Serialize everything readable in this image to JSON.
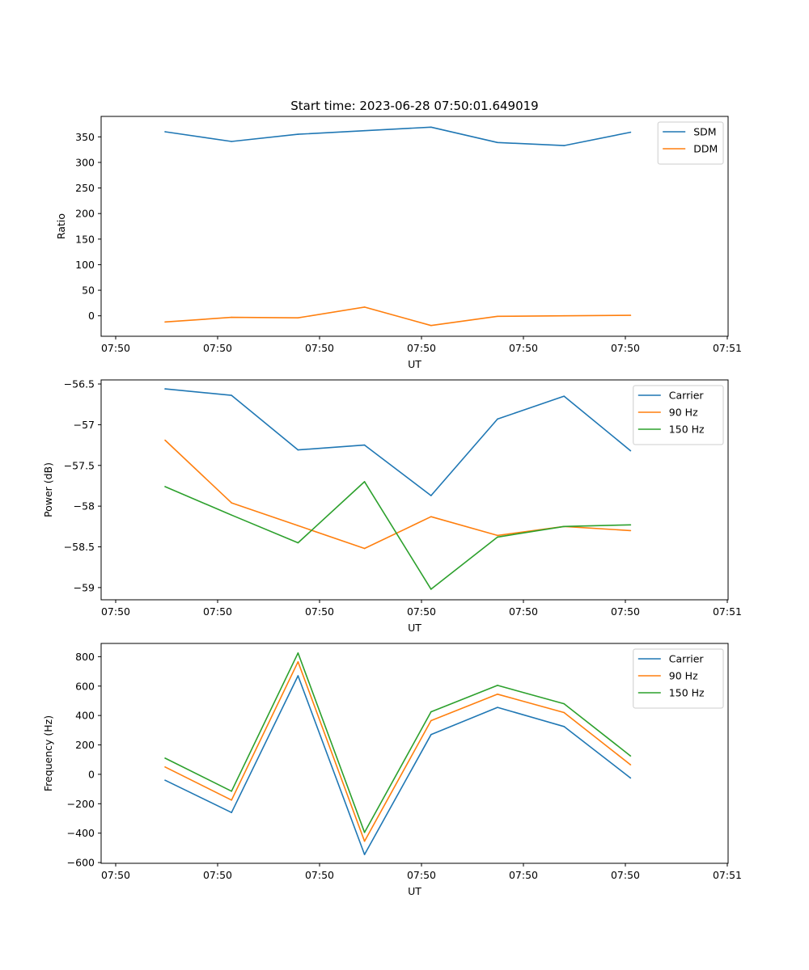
{
  "figure": {
    "title": "Start time: 2023-06-28 07:50:01.649019"
  },
  "chart_data": [
    {
      "type": "line",
      "xlabel": "UT",
      "ylabel": "Ratio",
      "x_ticks": [
        "07:50",
        "07:50",
        "07:50",
        "07:50",
        "07:50",
        "07:50",
        "07:51"
      ],
      "x_points": 8,
      "ylim": [
        -40,
        390
      ],
      "y_ticks": [
        0,
        50,
        100,
        150,
        200,
        250,
        300,
        350
      ],
      "legend": "top-right",
      "series": [
        {
          "name": "SDM",
          "color": "#1f77b4",
          "values": [
            360,
            341,
            355,
            362,
            369,
            339,
            333,
            359
          ]
        },
        {
          "name": "DDM",
          "color": "#ff7f0e",
          "values": [
            -12,
            -3,
            -4,
            17,
            -19,
            -1,
            0,
            1
          ]
        }
      ]
    },
    {
      "type": "line",
      "xlabel": "UT",
      "ylabel": "Power (dB)",
      "x_ticks": [
        "07:50",
        "07:50",
        "07:50",
        "07:50",
        "07:50",
        "07:50",
        "07:51"
      ],
      "x_points": 8,
      "ylim": [
        -59.15,
        -56.45
      ],
      "y_ticks": [
        -59.0,
        -58.5,
        -58.0,
        -57.5,
        -57.0,
        -56.5
      ],
      "legend": "top-right",
      "series": [
        {
          "name": "Carrier",
          "color": "#1f77b4",
          "values": [
            -56.56,
            -56.64,
            -57.31,
            -57.25,
            -57.87,
            -56.93,
            -56.65,
            -57.32
          ]
        },
        {
          "name": "90 Hz",
          "color": "#ff7f0e",
          "values": [
            -57.19,
            -57.96,
            -58.24,
            -58.52,
            -58.13,
            -58.36,
            -58.25,
            -58.3
          ]
        },
        {
          "name": "150 Hz",
          "color": "#2ca02c",
          "values": [
            -57.76,
            -58.11,
            -58.45,
            -57.7,
            -59.02,
            -58.38,
            -58.25,
            -58.23
          ]
        }
      ]
    },
    {
      "type": "line",
      "xlabel": "UT",
      "ylabel": "Frequency (Hz)",
      "x_ticks": [
        "07:50",
        "07:50",
        "07:50",
        "07:50",
        "07:50",
        "07:50",
        "07:51"
      ],
      "x_points": 8,
      "ylim": [
        -605,
        890
      ],
      "y_ticks": [
        -600,
        -400,
        -200,
        0,
        200,
        400,
        600,
        800
      ],
      "legend": "top-right",
      "series": [
        {
          "name": "Carrier",
          "color": "#1f77b4",
          "values": [
            -40,
            -260,
            670,
            -545,
            270,
            455,
            325,
            -25
          ]
        },
        {
          "name": "90 Hz",
          "color": "#ff7f0e",
          "values": [
            50,
            -175,
            765,
            -455,
            365,
            545,
            420,
            65
          ]
        },
        {
          "name": "150 Hz",
          "color": "#2ca02c",
          "values": [
            110,
            -115,
            825,
            -395,
            425,
            605,
            480,
            125
          ]
        }
      ]
    }
  ]
}
